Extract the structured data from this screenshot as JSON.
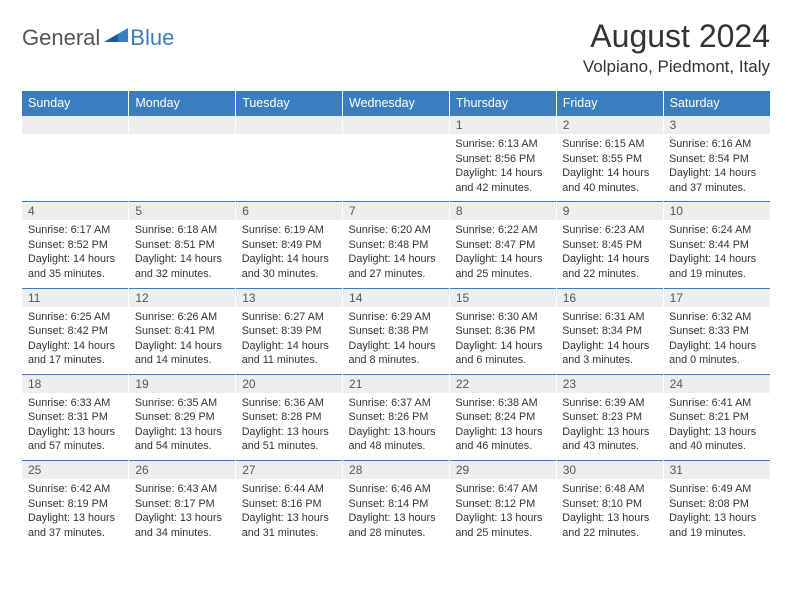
{
  "brand": {
    "part1": "General",
    "part2": "Blue"
  },
  "title": "August 2024",
  "location": "Volpiano, Piedmont, Italy",
  "colors": {
    "accent": "#3b7ec0",
    "header_bg": "#3b7ec0",
    "header_text": "#ffffff",
    "daynum_bg": "#eeeeee",
    "text": "#333333",
    "muted": "#555555"
  },
  "weekdays": [
    "Sunday",
    "Monday",
    "Tuesday",
    "Wednesday",
    "Thursday",
    "Friday",
    "Saturday"
  ],
  "weeks": [
    [
      null,
      null,
      null,
      null,
      {
        "n": "1",
        "sunrise": "6:13 AM",
        "sunset": "8:56 PM",
        "dl1": "Daylight: 14 hours",
        "dl2": "and 42 minutes."
      },
      {
        "n": "2",
        "sunrise": "6:15 AM",
        "sunset": "8:55 PM",
        "dl1": "Daylight: 14 hours",
        "dl2": "and 40 minutes."
      },
      {
        "n": "3",
        "sunrise": "6:16 AM",
        "sunset": "8:54 PM",
        "dl1": "Daylight: 14 hours",
        "dl2": "and 37 minutes."
      }
    ],
    [
      {
        "n": "4",
        "sunrise": "6:17 AM",
        "sunset": "8:52 PM",
        "dl1": "Daylight: 14 hours",
        "dl2": "and 35 minutes."
      },
      {
        "n": "5",
        "sunrise": "6:18 AM",
        "sunset": "8:51 PM",
        "dl1": "Daylight: 14 hours",
        "dl2": "and 32 minutes."
      },
      {
        "n": "6",
        "sunrise": "6:19 AM",
        "sunset": "8:49 PM",
        "dl1": "Daylight: 14 hours",
        "dl2": "and 30 minutes."
      },
      {
        "n": "7",
        "sunrise": "6:20 AM",
        "sunset": "8:48 PM",
        "dl1": "Daylight: 14 hours",
        "dl2": "and 27 minutes."
      },
      {
        "n": "8",
        "sunrise": "6:22 AM",
        "sunset": "8:47 PM",
        "dl1": "Daylight: 14 hours",
        "dl2": "and 25 minutes."
      },
      {
        "n": "9",
        "sunrise": "6:23 AM",
        "sunset": "8:45 PM",
        "dl1": "Daylight: 14 hours",
        "dl2": "and 22 minutes."
      },
      {
        "n": "10",
        "sunrise": "6:24 AM",
        "sunset": "8:44 PM",
        "dl1": "Daylight: 14 hours",
        "dl2": "and 19 minutes."
      }
    ],
    [
      {
        "n": "11",
        "sunrise": "6:25 AM",
        "sunset": "8:42 PM",
        "dl1": "Daylight: 14 hours",
        "dl2": "and 17 minutes."
      },
      {
        "n": "12",
        "sunrise": "6:26 AM",
        "sunset": "8:41 PM",
        "dl1": "Daylight: 14 hours",
        "dl2": "and 14 minutes."
      },
      {
        "n": "13",
        "sunrise": "6:27 AM",
        "sunset": "8:39 PM",
        "dl1": "Daylight: 14 hours",
        "dl2": "and 11 minutes."
      },
      {
        "n": "14",
        "sunrise": "6:29 AM",
        "sunset": "8:38 PM",
        "dl1": "Daylight: 14 hours",
        "dl2": "and 8 minutes."
      },
      {
        "n": "15",
        "sunrise": "6:30 AM",
        "sunset": "8:36 PM",
        "dl1": "Daylight: 14 hours",
        "dl2": "and 6 minutes."
      },
      {
        "n": "16",
        "sunrise": "6:31 AM",
        "sunset": "8:34 PM",
        "dl1": "Daylight: 14 hours",
        "dl2": "and 3 minutes."
      },
      {
        "n": "17",
        "sunrise": "6:32 AM",
        "sunset": "8:33 PM",
        "dl1": "Daylight: 14 hours",
        "dl2": "and 0 minutes."
      }
    ],
    [
      {
        "n": "18",
        "sunrise": "6:33 AM",
        "sunset": "8:31 PM",
        "dl1": "Daylight: 13 hours",
        "dl2": "and 57 minutes."
      },
      {
        "n": "19",
        "sunrise": "6:35 AM",
        "sunset": "8:29 PM",
        "dl1": "Daylight: 13 hours",
        "dl2": "and 54 minutes."
      },
      {
        "n": "20",
        "sunrise": "6:36 AM",
        "sunset": "8:28 PM",
        "dl1": "Daylight: 13 hours",
        "dl2": "and 51 minutes."
      },
      {
        "n": "21",
        "sunrise": "6:37 AM",
        "sunset": "8:26 PM",
        "dl1": "Daylight: 13 hours",
        "dl2": "and 48 minutes."
      },
      {
        "n": "22",
        "sunrise": "6:38 AM",
        "sunset": "8:24 PM",
        "dl1": "Daylight: 13 hours",
        "dl2": "and 46 minutes."
      },
      {
        "n": "23",
        "sunrise": "6:39 AM",
        "sunset": "8:23 PM",
        "dl1": "Daylight: 13 hours",
        "dl2": "and 43 minutes."
      },
      {
        "n": "24",
        "sunrise": "6:41 AM",
        "sunset": "8:21 PM",
        "dl1": "Daylight: 13 hours",
        "dl2": "and 40 minutes."
      }
    ],
    [
      {
        "n": "25",
        "sunrise": "6:42 AM",
        "sunset": "8:19 PM",
        "dl1": "Daylight: 13 hours",
        "dl2": "and 37 minutes."
      },
      {
        "n": "26",
        "sunrise": "6:43 AM",
        "sunset": "8:17 PM",
        "dl1": "Daylight: 13 hours",
        "dl2": "and 34 minutes."
      },
      {
        "n": "27",
        "sunrise": "6:44 AM",
        "sunset": "8:16 PM",
        "dl1": "Daylight: 13 hours",
        "dl2": "and 31 minutes."
      },
      {
        "n": "28",
        "sunrise": "6:46 AM",
        "sunset": "8:14 PM",
        "dl1": "Daylight: 13 hours",
        "dl2": "and 28 minutes."
      },
      {
        "n": "29",
        "sunrise": "6:47 AM",
        "sunset": "8:12 PM",
        "dl1": "Daylight: 13 hours",
        "dl2": "and 25 minutes."
      },
      {
        "n": "30",
        "sunrise": "6:48 AM",
        "sunset": "8:10 PM",
        "dl1": "Daylight: 13 hours",
        "dl2": "and 22 minutes."
      },
      {
        "n": "31",
        "sunrise": "6:49 AM",
        "sunset": "8:08 PM",
        "dl1": "Daylight: 13 hours",
        "dl2": "and 19 minutes."
      }
    ]
  ],
  "labels": {
    "sunrise": "Sunrise: ",
    "sunset": "Sunset: "
  }
}
